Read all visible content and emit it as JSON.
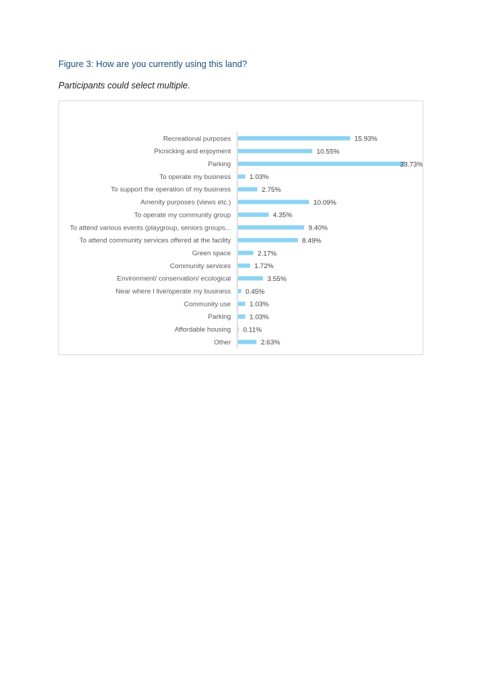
{
  "figure": {
    "title": "Figure 3: How are you currently using this land?",
    "subtitle": "Participants could select multiple."
  },
  "colors": {
    "bar": "#8dd3f3",
    "axis": "#bfbfbf"
  },
  "chart_data": {
    "type": "bar",
    "orientation": "horizontal",
    "categories": [
      "Recreational purposes",
      "Picnicking and enjoyment",
      "Parking",
      "To operate my business",
      "To support the operation of my business",
      "Amenity purposes (views etc.)",
      "To operate my community group",
      "To attend various events (playgroup, seniors groups...",
      "To attend community services offered at the facility",
      "Green space",
      "Community services",
      "Environment/ conservation/ ecological",
      "Near where I live/operate my business",
      "Community use",
      "Parking",
      "Affordable housing",
      "Other"
    ],
    "values": [
      15.93,
      10.55,
      23.73,
      1.03,
      2.75,
      10.09,
      4.35,
      9.4,
      8.49,
      2.17,
      1.72,
      3.55,
      0.45,
      1.03,
      1.03,
      0.11,
      2.63
    ],
    "value_labels": [
      "15.93%",
      "10.55%",
      "23.73%",
      "1.03%",
      "2.75%",
      "10.09%",
      "4.35%",
      "9.40%",
      "8.49%",
      "2.17%",
      "1.72%",
      "3.55%",
      "0.45%",
      "1.03%",
      "1.03%",
      "0.11%",
      "2.63%"
    ],
    "unit": "%",
    "xlim": [
      0,
      24
    ],
    "grid": false,
    "legend": "none"
  }
}
